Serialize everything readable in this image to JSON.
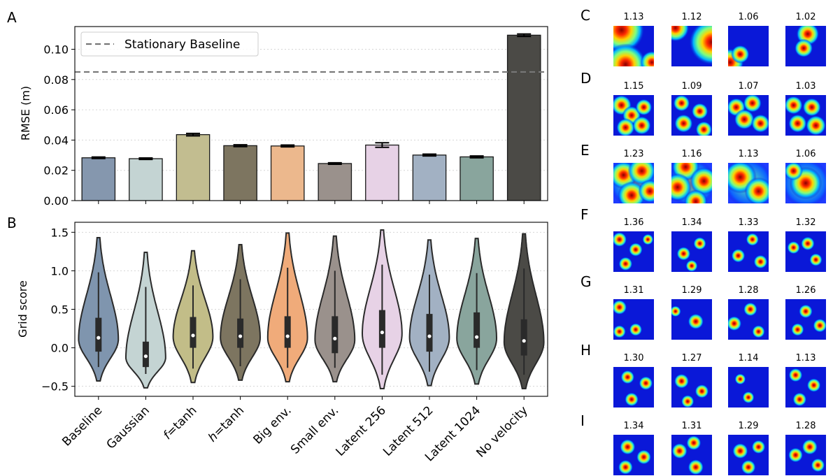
{
  "panels": {
    "labels": [
      "A",
      "B",
      "C",
      "D",
      "E",
      "F",
      "G",
      "H",
      "I"
    ]
  },
  "chart_data": [
    {
      "panel": "A",
      "type": "bar",
      "ylabel": "RMSE (m)",
      "ylim": [
        0,
        0.115
      ],
      "yticks": [
        "0.00",
        "0.02",
        "0.04",
        "0.06",
        "0.08",
        "0.10"
      ],
      "categories": [
        "Baseline",
        "Gaussian",
        "f=tanh",
        "h=tanh",
        "Big env.",
        "Small env.",
        "Latent 256",
        "Latent 512",
        "Latent 1024",
        "No velocity"
      ],
      "values": [
        0.0283,
        0.0277,
        0.0436,
        0.0363,
        0.0361,
        0.0245,
        0.0367,
        0.0301,
        0.0289,
        0.1093
      ],
      "errors": [
        0.0005,
        0.0005,
        0.0008,
        0.0006,
        0.0006,
        0.0005,
        0.0015,
        0.0006,
        0.0006,
        0.0008
      ],
      "colors": [
        "#8597ae",
        "#c4d4d3",
        "#c2bd90",
        "#7d7560",
        "#ecb88d",
        "#9a918c",
        "#e7d2e6",
        "#a2b1c3",
        "#89a59d",
        "#4b4a46"
      ],
      "reference_line": {
        "label": "Stationary Baseline",
        "value": 0.085,
        "style": "dashed",
        "color": "#777777"
      },
      "legend": "top-left",
      "grid": "horizontal dotted"
    },
    {
      "panel": "B",
      "type": "violin",
      "ylabel": "Grid score",
      "ylim": [
        -0.63,
        1.63
      ],
      "yticks": [
        "−0.5",
        "0.0",
        "0.5",
        "1.0",
        "1.5"
      ],
      "categories": [
        "Baseline",
        "Gaussian",
        "f=tanh",
        "h=tanh",
        "Big env.",
        "Small env.",
        "Latent 256",
        "Latent 512",
        "Latent 1024",
        "No velocity"
      ],
      "colors": [
        "#7f95ae",
        "#c4d4d3",
        "#c2bd88",
        "#7d7560",
        "#f0ab7a",
        "#9a918c",
        "#e7d2e6",
        "#a2b1c3",
        "#89a59d",
        "#4b4a46"
      ],
      "min": [
        -0.43,
        -0.52,
        -0.45,
        -0.42,
        -0.44,
        -0.44,
        -0.53,
        -0.49,
        -0.47,
        -0.53
      ],
      "max": [
        1.43,
        1.24,
        1.26,
        1.34,
        1.49,
        1.45,
        1.53,
        1.4,
        1.42,
        1.48
      ],
      "q1": [
        -0.05,
        -0.25,
        0.0,
        0.0,
        0.0,
        -0.07,
        0.0,
        -0.05,
        0.0,
        -0.1
      ],
      "median": [
        0.13,
        -0.11,
        0.16,
        0.15,
        0.15,
        0.12,
        0.2,
        0.15,
        0.14,
        0.09
      ],
      "q3": [
        0.39,
        0.08,
        0.4,
        0.38,
        0.41,
        0.41,
        0.49,
        0.44,
        0.46,
        0.37
      ],
      "grid": "horizontal dotted"
    }
  ],
  "heatmaps": {
    "rows": [
      {
        "label": "C",
        "scores": [
          "1.13",
          "1.12",
          "1.06",
          "1.02"
        ]
      },
      {
        "label": "D",
        "scores": [
          "1.15",
          "1.09",
          "1.07",
          "1.03"
        ]
      },
      {
        "label": "E",
        "scores": [
          "1.23",
          "1.16",
          "1.13",
          "1.06"
        ]
      },
      {
        "label": "F",
        "scores": [
          "1.36",
          "1.34",
          "1.33",
          "1.32"
        ]
      },
      {
        "label": "G",
        "scores": [
          "1.31",
          "1.29",
          "1.28",
          "1.26"
        ]
      },
      {
        "label": "H",
        "scores": [
          "1.30",
          "1.27",
          "1.14",
          "1.13"
        ]
      },
      {
        "label": "I",
        "scores": [
          "1.34",
          "1.31",
          "1.29",
          "1.28"
        ]
      }
    ],
    "colormap": "jet"
  }
}
